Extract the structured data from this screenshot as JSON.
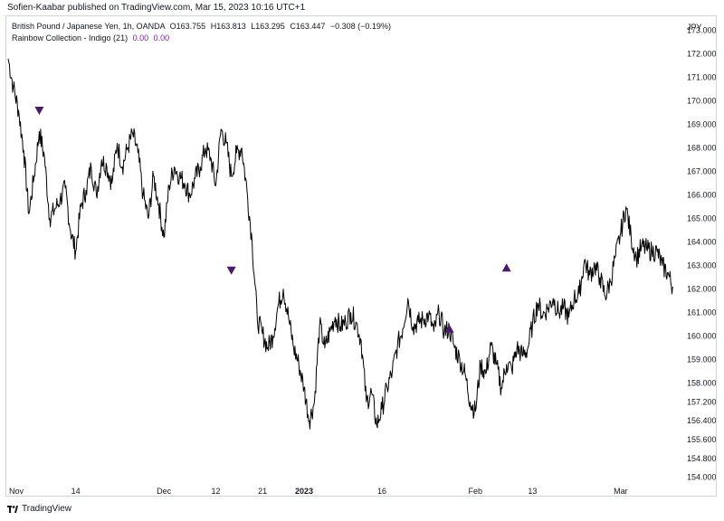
{
  "header": {
    "publisher": "Sofien-Kaabar published on TradingView.com, Mar 15, 2023 10:16 UTC+1"
  },
  "legend": {
    "symbol": "British Pound / Japanese Yen, 1h, OANDA",
    "open": "O163.755",
    "high": "H163.813",
    "low": "L163.295",
    "close": "C163.447",
    "change": "−0.308 (−0.19%)",
    "indicator": "Rainbow Collection - Indigo (21)",
    "indicator_val1": "0.00",
    "indicator_val2": "0.00"
  },
  "currency": "JPY",
  "footer": {
    "brand": "TradingView"
  },
  "colors": {
    "price": "#000000",
    "marker": "#4a1a6e",
    "grid": "#f0f3fa",
    "axis_text": "#131722"
  },
  "chart_data": {
    "type": "line",
    "title": "British Pound / Japanese Yen, 1h, OANDA",
    "ylim": [
      153.6,
      173.6
    ],
    "y_ticks": [
      "173.000",
      "172.000",
      "171.000",
      "170.000",
      "169.000",
      "168.000",
      "167.000",
      "166.000",
      "165.000",
      "164.000",
      "163.000",
      "162.000",
      "161.000",
      "160.000",
      "159.000",
      "158.000",
      "157.200",
      "156.400",
      "155.600",
      "154.800",
      "154.000"
    ],
    "x_ticks": [
      "Nov",
      "14",
      "Dec",
      "12",
      "21",
      "2023",
      "16",
      "Feb",
      "13",
      "Mar"
    ],
    "x_tick_positions": [
      0,
      13,
      30,
      40,
      49,
      57,
      72,
      90,
      101,
      118
    ],
    "xlim": [
      0,
      129
    ],
    "series": [
      {
        "x": [
          0,
          1,
          2,
          3,
          4,
          5,
          6,
          7,
          8,
          9,
          10,
          11,
          12,
          13,
          14,
          15,
          16,
          17,
          18,
          19,
          20,
          21,
          22,
          23,
          24,
          25,
          26,
          27,
          28,
          29,
          30,
          31,
          32,
          33,
          34,
          35,
          36,
          37,
          38,
          39,
          40,
          41,
          42,
          43,
          44,
          45,
          46,
          47,
          48,
          49,
          50,
          51,
          52,
          53,
          54,
          55,
          56,
          57,
          58,
          59,
          60,
          61,
          62,
          63,
          64,
          65,
          66,
          67,
          68,
          69,
          70,
          71,
          72,
          73,
          74,
          75,
          76,
          77,
          78,
          79,
          80,
          81,
          82,
          83,
          84,
          85,
          86,
          87,
          88,
          89,
          90,
          91,
          92,
          93,
          94,
          95,
          96,
          97,
          98,
          99,
          100,
          101,
          102,
          103,
          104,
          105,
          106,
          107,
          108,
          109,
          110,
          111,
          112,
          113,
          114,
          115,
          116,
          117,
          118,
          119,
          120,
          121,
          122,
          123,
          124,
          125,
          126,
          127,
          128
        ],
        "y": [
          171.8,
          170.6,
          169.6,
          167.9,
          165.2,
          166.8,
          168.7,
          167.6,
          165.0,
          165.4,
          165.8,
          166.3,
          164.5,
          163.6,
          165.5,
          166.2,
          167.2,
          166.0,
          167.5,
          167.2,
          166.5,
          168.2,
          167.2,
          168.0,
          168.6,
          167.8,
          166.0,
          165.0,
          166.8,
          165.6,
          164.2,
          166.4,
          167.2,
          166.8,
          166.5,
          166.0,
          166.7,
          167.2,
          168.0,
          167.6,
          166.4,
          168.8,
          168.2,
          166.8,
          167.8,
          168.0,
          166.2,
          164.0,
          160.7,
          160.1,
          159.5,
          160.0,
          161.3,
          162.0,
          160.8,
          159.5,
          158.8,
          157.8,
          156.4,
          157.2,
          160.5,
          159.5,
          160.2,
          160.8,
          160.4,
          160.6,
          161.0,
          160.6,
          159.8,
          157.2,
          157.6,
          156.2,
          156.9,
          157.8,
          158.5,
          159.6,
          160.3,
          161.6,
          160.4,
          160.6,
          160.7,
          160.9,
          160.2,
          161.0,
          160.2,
          160.3,
          159.5,
          159.0,
          158.4,
          157.2,
          156.8,
          158.8,
          158.4,
          159.6,
          158.8,
          157.8,
          158.8,
          158.6,
          159.5,
          159.2,
          159.4,
          160.5,
          161.4,
          160.9,
          161.2,
          161.6,
          161.0,
          161.2,
          160.8,
          161.6,
          161.8,
          163.2,
          162.6,
          163.0,
          162.5,
          161.7,
          162.3,
          163.4,
          164.4,
          165.5,
          164.2,
          163.3,
          163.8,
          163.7,
          163.6,
          163.6,
          163.0,
          162.7,
          162.1
        ]
      }
    ],
    "markers": [
      {
        "x": 6,
        "price": 169.6,
        "direction": "down"
      },
      {
        "x": 43,
        "price": 162.8,
        "direction": "down"
      },
      {
        "x": 85,
        "price": 160.3,
        "direction": "up"
      },
      {
        "x": 96,
        "price": 162.9,
        "direction": "up"
      }
    ],
    "grid": false,
    "legend": "top-left"
  }
}
